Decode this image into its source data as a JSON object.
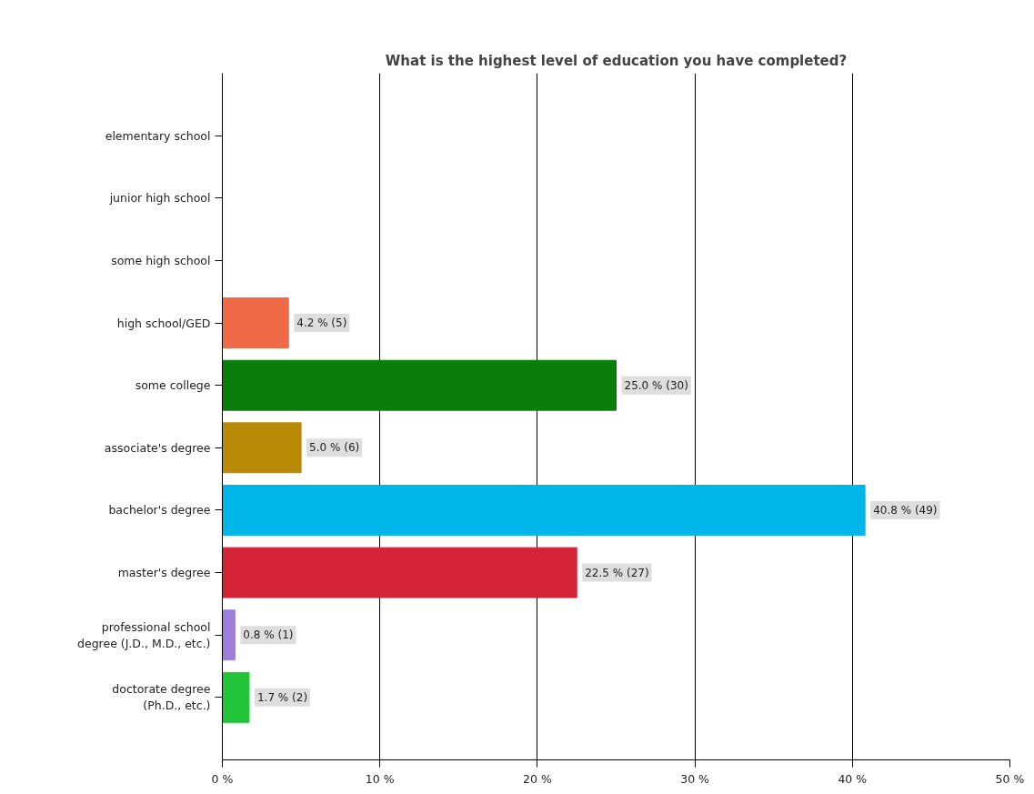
{
  "chart_data": {
    "type": "bar",
    "orientation": "horizontal",
    "title": "What is the highest level of education you have completed?",
    "categories": [
      "elementary school",
      "junior high school",
      "some high school",
      "high school/GED",
      "some college",
      "associate's degree",
      "bachelor's degree",
      "master's degree",
      "professional school\ndegree (J.D., M.D., etc.)",
      "doctorate degree\n(Ph.D., etc.)"
    ],
    "values": [
      0,
      0,
      0,
      4.2,
      25.0,
      5.0,
      40.8,
      22.5,
      0.8,
      1.7
    ],
    "colors": [
      null,
      null,
      null,
      "#f06a48",
      "#0a7d0a",
      "#b98a08",
      "#00b6e8",
      "#d42336",
      "#9d7fd8",
      "#22c43a"
    ],
    "value_labels": [
      null,
      null,
      null,
      "4.2 % (5)",
      "25.0 % (30)",
      "5.0 % (6)",
      "40.8 % (49)",
      "22.5 % (27)",
      "0.8 % (1)",
      "1.7 % (2)"
    ],
    "xlim": [
      0,
      50
    ],
    "xticks": [
      {
        "value": 0,
        "label": "0 %"
      },
      {
        "value": 10,
        "label": "10 %"
      },
      {
        "value": 20,
        "label": "20 %"
      },
      {
        "value": 30,
        "label": "30 %"
      },
      {
        "value": 40,
        "label": "40 %"
      },
      {
        "value": 50,
        "label": "50 %"
      }
    ],
    "grid": "x"
  }
}
